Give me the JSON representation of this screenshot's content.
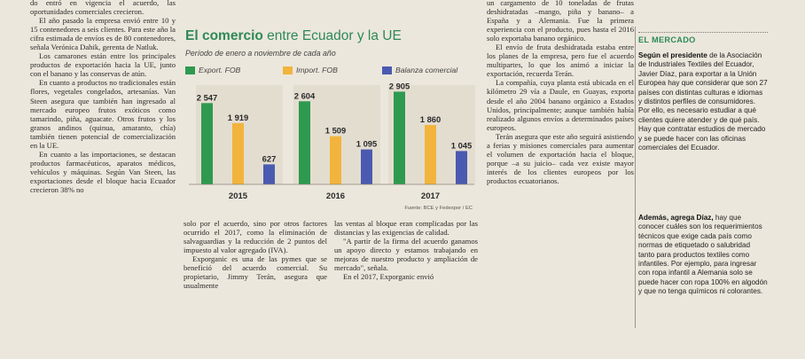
{
  "article": {
    "col1": [
      "do entró en vigencia el acuerdo, las oportunidades comerciales crecieron.",
      "El año pasado la empresa envió entre 10 y 15 contenedores a seis clientes. Para este año la cifra estimada de envíos es de 80 contenedores, señala Verónica Dahik, gerenta de Natluk.",
      "Los camarones están entre los principales productos de exportación hacia la UE, junto con el banano y las conservas de atún.",
      "En cuanto a productos no tradicionales están flores, vegetales congelados, artesanías. Van Steen asegura que también han ingresado al mercado europeo frutos exóticos como tamarindo, piña, aguacate. Otros frutos y los granos andinos (quinua, amaranto, chía) también tienen potencial de comercialización en la UE.",
      "En cuanto a las importaciones, se destacan productos farmacéuticos, aparatos médicos, vehículos y máquinas. Según Van Steen, las exportaciones desde el bloque hacia Ecuador crecieron 38% no"
    ],
    "col2": [
      "solo por el acuerdo, sino por otros factores ocurrido el 2017, como la eliminación de salvaguardias y la reducción de 2 puntos del impuesto al valor agregado (IVA).",
      "Exporganic es una de las pymes que se benefició del acuerdo comercial. Su propietario, Jimmy Terán, asegura que usualmente"
    ],
    "col3": [
      "las ventas al bloque eran complicadas por las distancias y las exigencias de calidad.",
      "\"A partir de la firma del acuerdo ganamos un apoyo directo y estamos trabajando en mejoras de nuestro producto y ampliación de mercado\", señala.",
      "En el 2017, Exporganic envió"
    ],
    "col4": [
      "un cargamento de 10 toneladas de frutas deshidratadas –mango, piña y banano– a España y a Alemania. Fue la primera experiencia con el producto, pues hasta el 2016 solo exportaba banano orgánico.",
      "El envío de fruta deshidratada estaba entre los planes de la empresa, pero fue el acuerdo multipartes, lo que los animó a iniciar la exportación, recuerda Terán.",
      "La compañía, cuya planta está ubicada en el kilómetro 29 vía a Daule, en Guayas, exporta desde el año 2004 banano orgánico a Estados Unidos, principalmente; aunque también había realizado algunos envíos a determinados países europeos.",
      "Terán asegura que este año seguirá asistiendo a ferias y misiones comerciales para aumentar el volumen de exportación hacia el bloque, porque –a su juicio– cada vez existe mayor interés de los clientes europeos por los productos ecuatorianos."
    ]
  },
  "sidebar": {
    "heading": "EL MERCADO",
    "p1_lead": "Según el presidente",
    "p1_text": " de la Asociación de Industriales Textiles del Ecuador, Javier Díaz, para exportar a la Unión Europea hay que considerar que son 27 países con distintas culturas e idiomas y distintos perfiles de consumidores. Por ello, es necesario estudiar a qué clientes quiere atender y de qué país. Hay que contratar estudios de mercado y se puede hacer con las oficinas comerciales del Ecuador.",
    "p2_lead": "Además, agrega Díaz,",
    "p2_text": " hay que conocer cuáles son los requerimientos técnicos que exige cada país como normas de etiquetado o salubridad tanto para productos textiles como infantiles. Por ejemplo, para ingresar con ropa infantil a Alemania solo se puede hacer con ropa 100% en algodón y que no tenga químicos ni colorantes."
  },
  "chart_data": {
    "type": "bar",
    "title_bold": "El comercio",
    "title_rest": " entre Ecuador y la UE",
    "subtitle": "Período de enero a noviembre de cada año",
    "categories": [
      "2015",
      "2016",
      "2017"
    ],
    "series": [
      {
        "name": "Export. FOB",
        "color": "#2e9a4f",
        "values": [
          2547,
          2604,
          2905
        ],
        "labels": [
          "2 547",
          "2 604",
          "2 905"
        ]
      },
      {
        "name": "Import. FOB",
        "color": "#f2b43c",
        "values": [
          1919,
          1509,
          1860
        ],
        "labels": [
          "1 919",
          "1 509",
          "1 860"
        ]
      },
      {
        "name": "Balanza comercial",
        "color": "#4a5ab0",
        "values": [
          627,
          1095,
          1045
        ],
        "labels": [
          "627",
          "1 095",
          "1 045"
        ]
      }
    ],
    "ylim": [
      0,
      3000
    ],
    "source": "Fuente: BCE y Fedexpor / EC"
  }
}
